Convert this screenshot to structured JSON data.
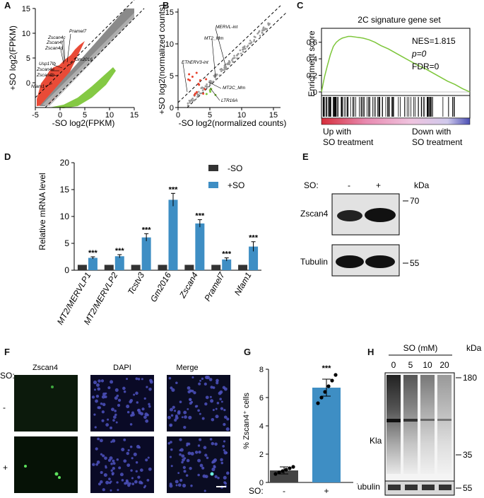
{
  "panels": {
    "A": {
      "letter": "A",
      "xlabel": "-SO log2(FPKM)",
      "ylabel": "+SO log2(FPKM)",
      "x_ticks": [
        "-5",
        "0",
        "5",
        "10",
        "15"
      ],
      "y_ticks": [
        "0",
        "5",
        "10",
        "15"
      ],
      "genes": [
        "Pramel7",
        "Zscan4c",
        "Zscan4f",
        "Zscan4d",
        "Usp17lb",
        "Gm2016",
        "Zscan4e",
        "Zscan4b",
        "Nfam1"
      ]
    },
    "B": {
      "letter": "B",
      "xlabel": "-SO log2(normalized counts)",
      "ylabel": "+SO log2(normalized counts)",
      "x_ticks": [
        "0",
        "5",
        "10",
        "15"
      ],
      "y_ticks": [
        "0",
        "5",
        "10",
        "15"
      ],
      "labels": [
        "MERVL-int",
        "MT2_Mm",
        "EThERV3-int",
        "MT2C_Mm",
        "LTR16A"
      ]
    },
    "C": {
      "letter": "C",
      "title": "2C signature gene set",
      "ylabel": "Enrichment score",
      "y_ticks": [
        "0",
        "0.2",
        "0.4",
        "0.6"
      ],
      "nes": "NES=1.815",
      "p": "p=0",
      "fdr": "FDR=0",
      "left_label_1": "Up with",
      "left_label_2": "SO treatment",
      "right_label_1": "Down with",
      "right_label_2": "SO treatment"
    },
    "D": {
      "letter": "D",
      "ylabel": "Relative mRNA level",
      "legend": [
        "-SO",
        "+SO"
      ],
      "sig": "***"
    },
    "E": {
      "letter": "E",
      "so_label": "SO:",
      "lanes": [
        "-",
        "+"
      ],
      "kda": "kDa",
      "rows": [
        {
          "name": "Zscan4",
          "marker": "70"
        },
        {
          "name": "Tubulin",
          "marker": "55"
        }
      ]
    },
    "F": {
      "letter": "F",
      "so_label": "SO:",
      "columns": [
        "Zscan4",
        "DAPI",
        "Merge"
      ],
      "rows": [
        "-",
        "+"
      ]
    },
    "G": {
      "letter": "G",
      "ylabel": "% Zscan4⁺ cells",
      "y_ticks": [
        "0",
        "2",
        "4",
        "6",
        "8"
      ],
      "so_label": "SO:",
      "groups": [
        "-",
        "+"
      ],
      "sig": "***"
    },
    "H": {
      "letter": "H",
      "header": "SO (mM)",
      "kda": "kDa",
      "lanes": [
        "0",
        "5",
        "10",
        "20"
      ],
      "markers": [
        "180",
        "35",
        "55"
      ],
      "row1": "Kla",
      "row2": "Tubulin"
    }
  },
  "chart_data": [
    {
      "id": "D",
      "type": "bar",
      "ylabel": "Relative mRNA level",
      "ylim": [
        0,
        20
      ],
      "yticks": [
        0,
        5,
        10,
        15,
        20
      ],
      "categories": [
        "MT2/MERVLP1",
        "MT2/MERVLP2",
        "Tcstv3",
        "Gm2016",
        "Zscan4",
        "Pramel7",
        "Nfam1"
      ],
      "series": [
        {
          "name": "-SO",
          "color": "#333333",
          "values": [
            1,
            1,
            1,
            1,
            1,
            1,
            1
          ]
        },
        {
          "name": "+SO",
          "color": "#3e8ec4",
          "values": [
            2.3,
            2.6,
            6.1,
            13.1,
            8.7,
            2.0,
            4.4
          ],
          "errors": [
            0.2,
            0.3,
            0.7,
            1.2,
            0.7,
            0.3,
            0.9
          ]
        }
      ]
    },
    {
      "id": "G",
      "type": "bar",
      "ylabel": "% Zscan4⁺ cells",
      "ylim": [
        0,
        8
      ],
      "categories": [
        "-",
        "+"
      ],
      "values": [
        0.85,
        6.7
      ],
      "errors": [
        0.25,
        0.6
      ],
      "colors": [
        "#444444",
        "#3e8ec4"
      ],
      "points": [
        [
          0.6,
          0.7,
          0.8,
          0.9,
          1.0,
          1.1
        ],
        [
          5.6,
          6.0,
          6.4,
          6.8,
          7.2,
          7.6
        ]
      ]
    },
    {
      "id": "C",
      "type": "line",
      "ylim": [
        0,
        0.7
      ],
      "x": [
        0,
        2,
        4,
        6,
        8,
        10,
        12,
        14,
        16,
        18,
        20,
        24,
        28,
        32,
        36,
        40,
        45,
        50,
        55,
        60,
        65,
        70,
        75,
        80,
        85,
        90,
        95,
        100
      ],
      "y": [
        0,
        0.18,
        0.32,
        0.45,
        0.55,
        0.6,
        0.63,
        0.65,
        0.66,
        0.67,
        0.67,
        0.66,
        0.65,
        0.63,
        0.6,
        0.56,
        0.52,
        0.47,
        0.42,
        0.37,
        0.32,
        0.28,
        0.23,
        0.18,
        0.13,
        0.09,
        0.04,
        0.0
      ]
    }
  ]
}
